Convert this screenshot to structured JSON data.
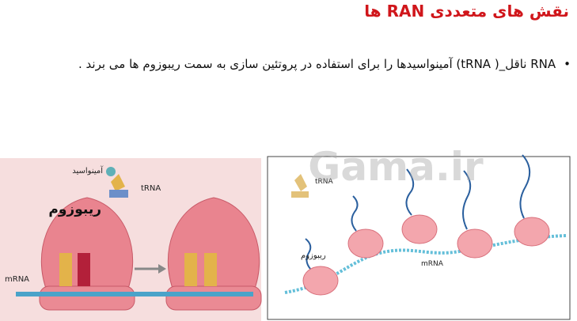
{
  "header": {
    "title": "نقش های متعددی RAN ها"
  },
  "bullets": [
    "RNA ناقل_( tRNA) آمینواسیدها را برای استفاده در پروتئین سازی به سمت ریبوزوم ها می برند ."
  ],
  "watermark": "Gama.ir",
  "figures": [
    {
      "labels": [
        "آمینواسید",
        "tRNA",
        "ریبوزوم",
        "mRNA"
      ]
    },
    {
      "labels": [
        "tRNA",
        "ریبوزوم",
        "mRNA"
      ]
    }
  ]
}
